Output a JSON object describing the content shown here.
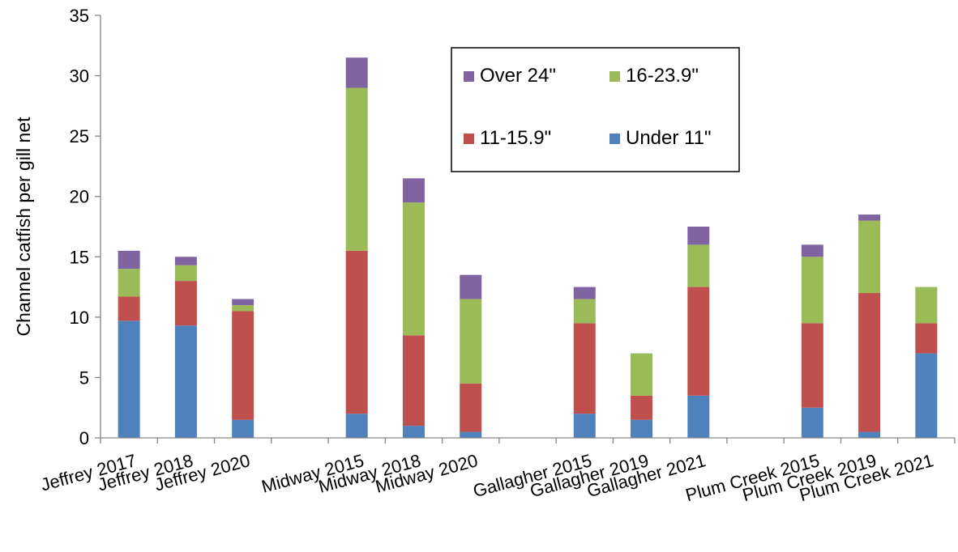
{
  "chart_data": {
    "type": "bar",
    "stacked": true,
    "title": "",
    "xlabel": "",
    "ylabel": "Channel catfish per gill net",
    "ylim": [
      0,
      35
    ],
    "yticks": [
      0,
      5,
      10,
      15,
      20,
      25,
      30,
      35
    ],
    "grid": false,
    "legend_position": "top-right",
    "legend_order": [
      "Over 24\"",
      "16-23.9\"",
      "11-15.9\"",
      "Under 11\""
    ],
    "slots": [
      "Jeffrey 2017",
      "Jeffrey 2018",
      "Jeffrey 2020",
      "",
      "Midway 2015",
      "Midway 2018",
      "Midway 2020",
      "",
      "Gallagher 2015",
      "Gallagher 2019",
      "Gallagher 2021",
      "",
      "Plum Creek 2015",
      "Plum Creek 2019",
      "Plum Creek 2021"
    ],
    "categories": [
      "Jeffrey 2017",
      "Jeffrey 2018",
      "Jeffrey 2020",
      "Midway 2015",
      "Midway 2018",
      "Midway 2020",
      "Gallagher 2015",
      "Gallagher 2019",
      "Gallagher 2021",
      "Plum Creek 2015",
      "Plum Creek 2019",
      "Plum Creek 2021"
    ],
    "series": [
      {
        "name": "Under 11\"",
        "color": "#4f81bd",
        "values": [
          9.7,
          9.3,
          1.5,
          2.0,
          1.0,
          0.5,
          2.0,
          1.5,
          3.5,
          2.5,
          0.5,
          7.0
        ]
      },
      {
        "name": "11-15.9\"",
        "color": "#c0504d",
        "values": [
          2.0,
          3.7,
          9.0,
          13.5,
          7.5,
          4.0,
          7.5,
          2.0,
          9.0,
          7.0,
          11.5,
          2.5
        ]
      },
      {
        "name": "16-23.9\"",
        "color": "#9bbb59",
        "values": [
          2.3,
          1.3,
          0.5,
          13.5,
          11.0,
          7.0,
          2.0,
          3.5,
          3.5,
          5.5,
          6.0,
          3.0
        ]
      },
      {
        "name": "Over 24\"",
        "color": "#8064a2",
        "values": [
          1.5,
          0.7,
          0.5,
          2.5,
          2.0,
          2.0,
          1.0,
          0.0,
          1.5,
          1.0,
          0.5,
          0.0
        ]
      }
    ]
  }
}
